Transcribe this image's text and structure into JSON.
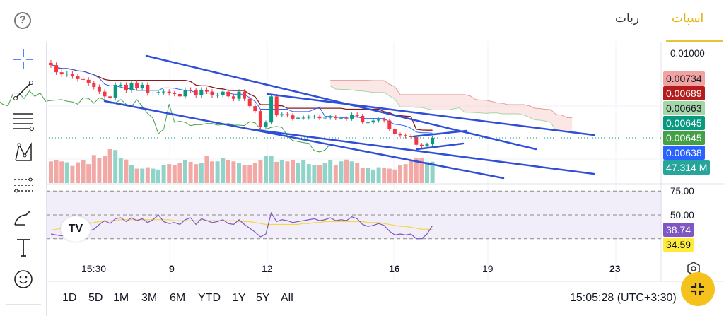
{
  "header": {
    "help_icon": "question-circle-icon",
    "tabs": [
      {
        "label": "اسپات",
        "active": true
      },
      {
        "label": "ربات",
        "active": false
      }
    ],
    "accent": "#e6c33a"
  },
  "toolbar": {
    "tools": [
      "crosshair-icon",
      "trendline-icon",
      "fib-retracement-icon",
      "pattern-icon",
      "prediction-icon",
      "brush-icon",
      "text-icon",
      "emoji-icon"
    ]
  },
  "price_axis": {
    "top_label": "0.01000",
    "labels": [
      {
        "value": "0.00734",
        "bg": "#f0a3a3",
        "fg": "#131722"
      },
      {
        "value": "0.00689",
        "bg": "#b71c1c",
        "fg": "#ffffff"
      },
      {
        "value": "0.00663",
        "bg": "#a5d6a7",
        "fg": "#131722"
      },
      {
        "value": "0.00645",
        "bg": "#089981",
        "fg": "#ffffff"
      },
      {
        "value": "0.00645",
        "bg": "#43a047",
        "fg": "#ffffff"
      },
      {
        "value": "0.00638",
        "bg": "#2962ff",
        "fg": "#ffffff"
      },
      {
        "value": "47.314 M",
        "bg": "#26a69a",
        "fg": "#ffffff"
      }
    ]
  },
  "rsi_axis": {
    "labels": [
      "75.00",
      "50.00"
    ],
    "rsi_value": "38.74",
    "rsi_color": "#7e57c2",
    "ma_value": "34.59",
    "ma_color": "#ffeb3b"
  },
  "time_axis": [
    "15:30",
    "9",
    "12",
    "16",
    "19",
    "23"
  ],
  "ranges": [
    "1D",
    "5D",
    "1M",
    "3M",
    "6M",
    "YTD",
    "1Y",
    "5Y",
    "All"
  ],
  "clock": "15:05:28 (UTC+3:30)",
  "chart_data": {
    "type": "candlestick",
    "last_price": 0.00645,
    "ichimoku": {
      "conversion": 9,
      "base": 26,
      "span_b": 52,
      "displacement": 26
    },
    "closes": [
      0.00952,
      0.00922,
      0.00913,
      0.00916,
      0.00905,
      0.00893,
      0.0089,
      0.00875,
      0.0086,
      0.0084,
      0.0082,
      0.00812,
      0.00869,
      0.00869,
      0.00845,
      0.00878,
      0.00854,
      0.00869,
      0.00833,
      0.00836,
      0.00838,
      0.0084,
      0.00833,
      0.0083,
      0.0082,
      0.00848,
      0.00845,
      0.00824,
      0.00848,
      0.0084,
      0.00824,
      0.00826,
      0.0084,
      0.0082,
      0.0081,
      0.0084,
      0.0081,
      0.00779,
      0.00758,
      0.0069,
      0.0071,
      0.0082,
      0.0074,
      0.00745,
      0.0074,
      0.00726,
      0.0073,
      0.0073,
      0.00735,
      0.00735,
      0.00728,
      0.0073,
      0.00735,
      0.00728,
      0.00728,
      0.00726,
      0.00743,
      0.00738,
      0.0071,
      0.0071,
      0.00718,
      0.00722,
      0.00718,
      0.00681,
      0.0066,
      0.00656,
      0.00651,
      0.00648,
      0.00616,
      0.0061,
      0.00618,
      0.00645
    ],
    "volumes_m": [
      48,
      50,
      48,
      46,
      38,
      46,
      50,
      42,
      62,
      56,
      60,
      75,
      73,
      55,
      52,
      40,
      32,
      32,
      35,
      32,
      30,
      40,
      42,
      40,
      45,
      50,
      47,
      42,
      45,
      60,
      48,
      48,
      55,
      50,
      48,
      45,
      40,
      40,
      45,
      50,
      60,
      60,
      47,
      50,
      48,
      50,
      45,
      50,
      42,
      40,
      40,
      45,
      50,
      40,
      48,
      52,
      48,
      45,
      33,
      33,
      30,
      35,
      33,
      32,
      30,
      40,
      42,
      50,
      55,
      55,
      47,
      47.314
    ],
    "rsi": [
      30,
      29,
      28,
      29,
      28,
      27,
      29,
      33,
      35,
      40,
      44,
      41,
      46,
      47,
      43,
      47,
      44,
      46,
      42,
      45,
      50,
      43,
      41,
      42,
      40,
      45,
      47,
      40,
      46,
      44,
      42,
      43,
      45,
      41,
      40,
      45,
      40,
      36,
      32,
      27,
      30,
      52,
      43,
      45,
      44,
      42,
      43,
      44,
      45,
      46,
      44,
      45,
      47,
      44,
      45,
      44,
      48,
      46,
      40,
      38,
      39,
      41,
      39,
      33,
      29,
      30,
      29,
      30,
      25,
      25,
      30,
      38.74
    ],
    "rsi_ma": [
      34,
      35,
      36,
      37,
      38,
      39,
      40,
      41,
      42,
      43,
      43,
      44,
      44,
      45,
      45,
      45,
      45,
      45,
      45,
      45,
      45,
      45,
      45,
      44,
      44,
      44,
      44,
      44,
      44,
      44,
      44,
      44,
      44,
      44,
      44,
      43,
      43,
      43,
      42,
      41,
      40,
      40,
      40,
      40,
      40,
      40,
      40,
      41,
      41,
      42,
      42,
      43,
      43,
      43,
      43,
      43,
      43,
      43,
      43,
      42,
      42,
      42,
      41,
      40,
      39,
      38,
      38,
      37,
      36,
      35,
      35,
      34.59
    ],
    "rsi_levels": [
      75,
      50,
      25
    ]
  }
}
